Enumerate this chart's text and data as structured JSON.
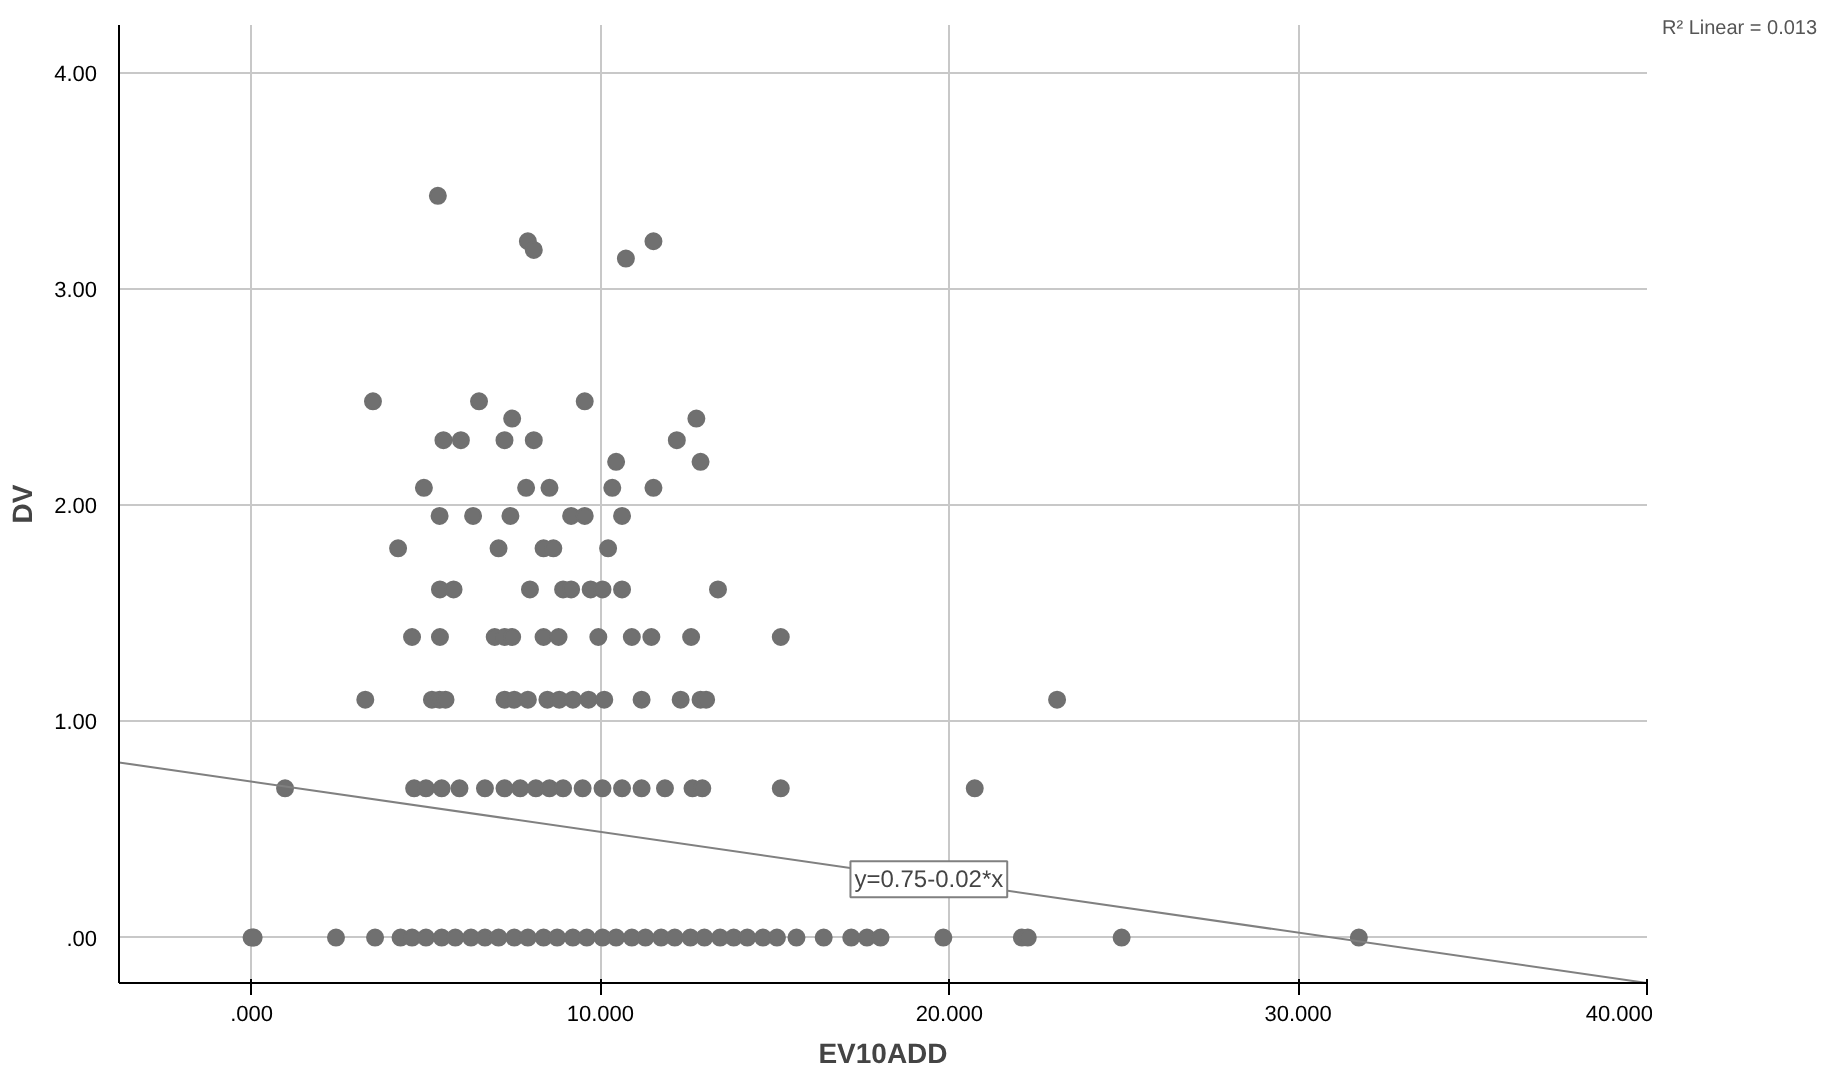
{
  "chart_data": {
    "type": "scatter",
    "xlabel": "EV10ADD",
    "ylabel": "DV",
    "xlim": [
      -3.8,
      40
    ],
    "ylim": [
      -0.21,
      4.22
    ],
    "xticks": [
      {
        "value": 0,
        "label": ".000"
      },
      {
        "value": 10,
        "label": "10.000"
      },
      {
        "value": 20,
        "label": "20.000"
      },
      {
        "value": 30,
        "label": "30.000"
      },
      {
        "value": 40,
        "label": "40.000"
      }
    ],
    "yticks": [
      {
        "value": 0,
        "label": ".00"
      },
      {
        "value": 1,
        "label": "1.00"
      },
      {
        "value": 2,
        "label": "2.00"
      },
      {
        "value": 3,
        "label": "3.00"
      },
      {
        "value": 4,
        "label": "4.00"
      }
    ],
    "grid": true,
    "annotations": [
      "R² Linear = 0.013"
    ],
    "series": [
      {
        "color": "#707070",
        "marker": "circle",
        "x": [
          5.34,
          7.92,
          8.09,
          10.73,
          11.52,
          3.48,
          6.52,
          9.55,
          7.47,
          12.75,
          5.5,
          6.0,
          7.25,
          8.09,
          12.19,
          10.45,
          12.87,
          4.94,
          7.87,
          8.54,
          10.34,
          11.52,
          5.39,
          6.35,
          7.42,
          9.16,
          9.55,
          10.62,
          4.2,
          7.08,
          8.37,
          8.65,
          10.22,
          5.4,
          5.79,
          7.98,
          8.93,
          9.16,
          9.72,
          10.06,
          10.62,
          13.37,
          4.6,
          5.4,
          6.97,
          7.25,
          7.47,
          8.37,
          8.8,
          9.94,
          10.9,
          11.46,
          12.6,
          15.17,
          3.26,
          5.17,
          5.39,
          5.56,
          7.25,
          7.53,
          7.92,
          8.48,
          8.82,
          9.21,
          9.66,
          10.11,
          11.18,
          12.3,
          12.87,
          13.03,
          23.09,
          0.96,
          4.66,
          5.0,
          5.45,
          5.96,
          6.69,
          7.25,
          7.7,
          8.15,
          8.54,
          8.93,
          9.49,
          10.06,
          10.62,
          11.18,
          11.85,
          12.64,
          12.92,
          15.17,
          20.73,
          0,
          0.06,
          2.42,
          3.54,
          4.27,
          4.6,
          5.0,
          5.45,
          5.84,
          6.29,
          6.69,
          7.08,
          7.53,
          7.92,
          8.37,
          8.76,
          9.21,
          9.61,
          10.06,
          10.45,
          10.9,
          11.29,
          11.74,
          12.13,
          12.58,
          12.98,
          13.43,
          13.82,
          14.21,
          14.66,
          15.06,
          15.62,
          16.4,
          17.19,
          17.64,
          18.03,
          19.83,
          22.08,
          22.25,
          24.94,
          31.74
        ],
        "values": [
          3.43,
          3.22,
          3.18,
          3.14,
          3.22,
          2.48,
          2.48,
          2.48,
          2.4,
          2.4,
          2.3,
          2.3,
          2.3,
          2.3,
          2.3,
          2.2,
          2.2,
          2.08,
          2.08,
          2.08,
          2.08,
          2.08,
          1.95,
          1.95,
          1.95,
          1.95,
          1.95,
          1.95,
          1.8,
          1.8,
          1.8,
          1.8,
          1.8,
          1.61,
          1.61,
          1.61,
          1.61,
          1.61,
          1.61,
          1.61,
          1.61,
          1.61,
          1.39,
          1.39,
          1.39,
          1.39,
          1.39,
          1.39,
          1.39,
          1.39,
          1.39,
          1.39,
          1.39,
          1.39,
          1.1,
          1.1,
          1.1,
          1.1,
          1.1,
          1.1,
          1.1,
          1.1,
          1.1,
          1.1,
          1.1,
          1.1,
          1.1,
          1.1,
          1.1,
          1.1,
          1.1,
          0.69,
          0.69,
          0.69,
          0.69,
          0.69,
          0.69,
          0.69,
          0.69,
          0.69,
          0.69,
          0.69,
          0.69,
          0.69,
          0.69,
          0.69,
          0.69,
          0.69,
          0.69,
          0.69,
          0.69,
          0,
          0,
          0,
          0,
          0,
          0,
          0,
          0,
          0,
          0,
          0,
          0,
          0,
          0,
          0,
          0,
          0,
          0,
          0,
          0,
          0,
          0,
          0,
          0,
          0,
          0,
          0,
          0,
          0,
          0,
          0,
          0,
          0,
          0,
          0,
          0,
          0,
          0,
          0,
          0,
          0
        ]
      },
      {
        "type": "line",
        "name": "y=0.75-0.02*x",
        "color": "#808080",
        "x": [
          -3.8,
          40
        ],
        "values": [
          0.81,
          -0.21
        ]
      }
    ]
  }
}
